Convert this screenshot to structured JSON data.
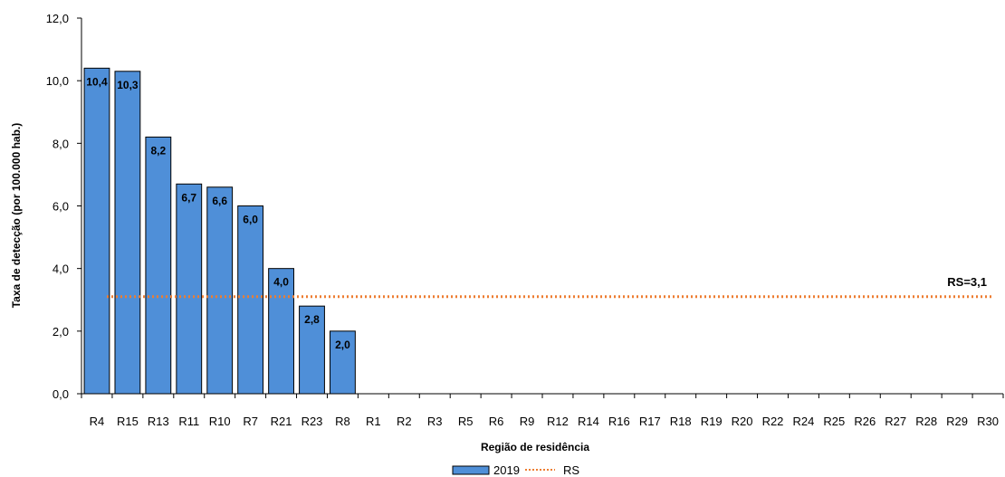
{
  "chart_data": {
    "type": "bar",
    "title": "",
    "xlabel": "Região de residência",
    "ylabel": "Taxa de detecção (por 100.000 hab.)",
    "ylim": [
      0,
      12
    ],
    "yticks": [
      "0,0",
      "2,0",
      "4,0",
      "6,0",
      "8,0",
      "10,0",
      "12,0"
    ],
    "grid": false,
    "legend_position": "bottom",
    "categories": [
      "R4",
      "R15",
      "R13",
      "R11",
      "R10",
      "R7",
      "R21",
      "R23",
      "R8",
      "R1",
      "R2",
      "R3",
      "R5",
      "R6",
      "R9",
      "R12",
      "R14",
      "R16",
      "R17",
      "R18",
      "R19",
      "R20",
      "R22",
      "R24",
      "R25",
      "R26",
      "R27",
      "R28",
      "R29",
      "R30"
    ],
    "series": [
      {
        "name": "2019",
        "color": "#4f8fd8",
        "values": [
          10.4,
          10.3,
          8.2,
          6.7,
          6.6,
          6.0,
          4.0,
          2.8,
          2.0,
          null,
          null,
          null,
          null,
          null,
          null,
          null,
          null,
          null,
          null,
          null,
          null,
          null,
          null,
          null,
          null,
          null,
          null,
          null,
          null,
          null
        ],
        "data_labels": [
          "10,4",
          "10,3",
          "8,2",
          "6,7",
          "6,6",
          "6,0",
          "4,0",
          "2,8",
          "2,0",
          "",
          "",
          "",
          "",
          "",
          "",
          "",
          "",
          "",
          "",
          "",
          "",
          "",
          "",
          "",
          "",
          "",
          "",
          "",
          "",
          ""
        ]
      }
    ],
    "reference_line": {
      "name": "RS",
      "value": 3.1,
      "label": "RS=3,1",
      "color": "#ed7d31",
      "style": "dotted"
    }
  }
}
